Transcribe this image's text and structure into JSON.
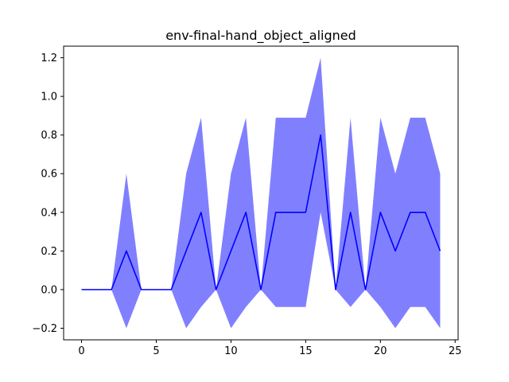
{
  "chart_data": {
    "type": "line",
    "title": "env-final-hand_object_aligned",
    "xlabel": "",
    "ylabel": "",
    "xlim": [
      -1.2,
      25.2
    ],
    "ylim": [
      -0.26,
      1.26
    ],
    "xticks": [
      0,
      5,
      10,
      15,
      20,
      25
    ],
    "yticks": [
      -0.2,
      0.0,
      0.2,
      0.4,
      0.6,
      0.8,
      1.0,
      1.2
    ],
    "grid": false,
    "x": [
      0,
      1,
      2,
      3,
      4,
      5,
      6,
      7,
      8,
      9,
      10,
      11,
      12,
      13,
      14,
      15,
      16,
      17,
      18,
      19,
      20,
      21,
      22,
      23,
      24
    ],
    "series": [
      {
        "color": "#0000ff",
        "values": [
          0,
          0,
          0,
          0.2,
          0,
          0,
          0,
          0.2,
          0.4,
          0,
          0.2,
          0.4,
          0,
          0.4,
          0.4,
          0.4,
          0.8,
          0,
          0.4,
          0,
          0.4,
          0.2,
          0.4,
          0.4,
          0.2
        ],
        "band_upper": [
          0,
          0,
          0,
          0.6,
          0,
          0,
          0,
          0.6,
          0.89,
          0,
          0.6,
          0.89,
          0,
          0.89,
          0.89,
          0.89,
          1.2,
          0,
          0.89,
          0,
          0.89,
          0.6,
          0.89,
          0.89,
          0.6
        ],
        "band_lower": [
          0,
          0,
          0,
          -0.2,
          0,
          0,
          0,
          -0.2,
          -0.09,
          0,
          -0.2,
          -0.09,
          0,
          -0.09,
          -0.09,
          -0.09,
          0.4,
          0,
          -0.09,
          0,
          -0.09,
          -0.2,
          -0.09,
          -0.09,
          -0.2
        ],
        "band_color": "#8080ff"
      }
    ]
  }
}
